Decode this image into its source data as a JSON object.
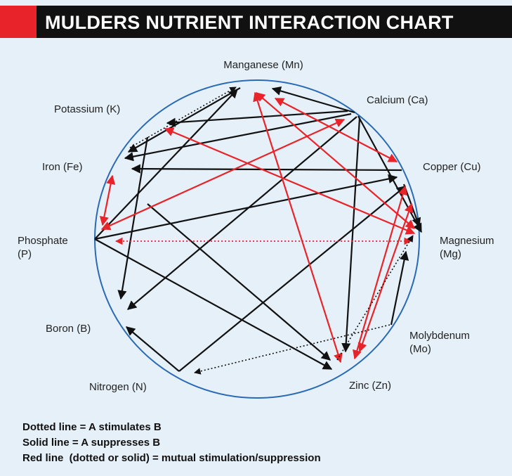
{
  "header": {
    "title": "MULDERS NUTRIENT INTERACTION CHART"
  },
  "nodes": [
    {
      "label": "Manganese (Mn)"
    },
    {
      "label": "Calcium (Ca)"
    },
    {
      "label": "Copper (Cu)"
    },
    {
      "label": "Magnesium",
      "sublabel": "(Mg)"
    },
    {
      "label": "Molybdenum",
      "sublabel": "(Mo)"
    },
    {
      "label": "Zinc (Zn)"
    },
    {
      "label": "Nitrogen (N)"
    },
    {
      "label": "Boron (B)"
    },
    {
      "label": "Phosphate",
      "sublabel": "(P)"
    },
    {
      "label": "Iron (Fe)"
    },
    {
      "label": "Potassium (K)"
    }
  ],
  "legend": [
    "Dotted line = A stimulates B",
    "Solid line = A suppresses B",
    "Red line  (dotted or solid) = mutual stimulation/suppression"
  ]
}
